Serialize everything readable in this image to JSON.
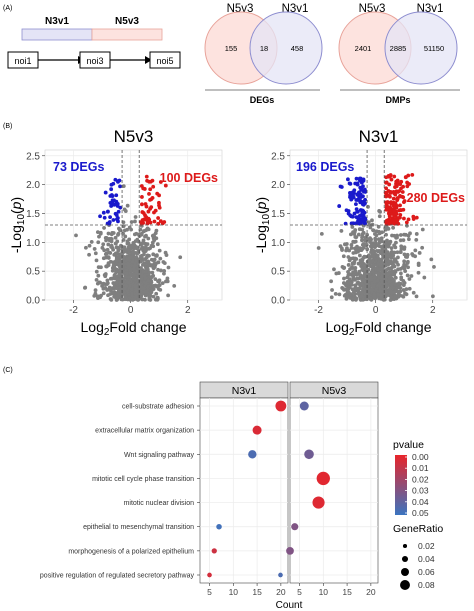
{
  "panels": {
    "a_label": "(A)",
    "b_label": "(B)",
    "c_label": "(C)"
  },
  "schematic": {
    "n3v1": "N3v1",
    "n5v3": "N5v3",
    "noi1": "noi1",
    "noi3": "noi3",
    "noi5": "noi5"
  },
  "venn_degs": {
    "left_label": "N5v3",
    "right_label": "N3v1",
    "left_only": "155",
    "overlap": "18",
    "right_only": "458",
    "caption": "DEGs"
  },
  "venn_dmps": {
    "left_label": "N5v3",
    "right_label": "N3v1",
    "left_only": "2401",
    "overlap": "2885",
    "right_only": "51150",
    "caption": "DMPs"
  },
  "colors": {
    "venn_left_fill": "#fde3df",
    "venn_left_stroke": "#e8a39a",
    "venn_right_fill": "#e4e4f6",
    "venn_right_stroke": "#8e8ed0",
    "venn_overlap_fill": "#f2c8e6",
    "down": "#1a1acc",
    "up": "#dd1a1a",
    "ns": "#7f7f7f",
    "grid": "#ebebeb",
    "strip": "#d9d9d9"
  },
  "chart_data": [
    {
      "type": "scatter",
      "title": "N5v3",
      "xlabel": "Log2Fold change",
      "ylabel": "-Log10(p)",
      "xlim": [
        -3,
        3.2
      ],
      "ylim": [
        0,
        2.6
      ],
      "xticks": [
        -2,
        0,
        2
      ],
      "yticks": [
        0.0,
        0.5,
        1.0,
        1.5,
        2.0,
        2.5
      ],
      "thresholds": {
        "x": [
          -0.3,
          0.3
        ],
        "y": 1.3
      },
      "annotations": [
        {
          "text": "73 DEGs",
          "color": "down"
        },
        {
          "text": "100 DEGs",
          "color": "up"
        }
      ]
    },
    {
      "type": "scatter",
      "title": "N3v1",
      "xlabel": "Log2Fold change",
      "ylabel": "-Log10(p)",
      "xlim": [
        -3,
        3.2
      ],
      "ylim": [
        0,
        2.6
      ],
      "xticks": [
        -2,
        0,
        2
      ],
      "yticks": [
        0.0,
        0.5,
        1.0,
        1.5,
        2.0,
        2.5
      ],
      "thresholds": {
        "x": [
          -0.3,
          0.3
        ],
        "y": 1.3
      },
      "annotations": [
        {
          "text": "196 DEGs",
          "color": "down"
        },
        {
          "text": "280 DEGs",
          "color": "up"
        }
      ]
    },
    {
      "type": "scatter",
      "subtype": "dotplot",
      "facets": [
        "N3v1",
        "N5v3"
      ],
      "xlabel": "Count",
      "xlim": [
        3,
        21.5
      ],
      "xticks": [
        5,
        10,
        15,
        20
      ],
      "categories": [
        "cell-substrate adhesion",
        "extracellular matrix organization",
        "Wnt signaling pathway",
        "mitotic cell cycle phase transition",
        "mitotic nuclear division",
        "epithelial to mesenchymal transition",
        "morphogenesis of a polarized epithelium",
        "positive regulation of regulated secretory pathway"
      ],
      "series": [
        {
          "name": "N3v1",
          "points": [
            {
              "term": "cell-substrate adhesion",
              "count": 20,
              "pvalue": 0.003,
              "generatio": 0.065
            },
            {
              "term": "extracellular matrix organization",
              "count": 15,
              "pvalue": 0.004,
              "generatio": 0.05
            },
            {
              "term": "Wnt signaling pathway",
              "count": 14,
              "pvalue": 0.045,
              "generatio": 0.045
            },
            {
              "term": "epithelial to mesenchymal transition",
              "count": 7,
              "pvalue": 0.048,
              "generatio": 0.022
            },
            {
              "term": "morphogenesis of a polarized epithelium",
              "count": 6,
              "pvalue": 0.008,
              "generatio": 0.02
            },
            {
              "term": "positive regulation of regulated secretory pathway",
              "count": 5,
              "pvalue": 0.006,
              "generatio": 0.015
            }
          ]
        },
        {
          "name": "N5v3",
          "points": [
            {
              "term": "cell-substrate adhesion",
              "count": 6,
              "pvalue": 0.04,
              "generatio": 0.05
            },
            {
              "term": "Wnt signaling pathway",
              "count": 7,
              "pvalue": 0.035,
              "generatio": 0.055
            },
            {
              "term": "mitotic cell cycle phase transition",
              "count": 10,
              "pvalue": 0.002,
              "generatio": 0.085
            },
            {
              "term": "mitotic nuclear division",
              "count": 9,
              "pvalue": 0.003,
              "generatio": 0.075
            },
            {
              "term": "epithelial to mesenchymal transition",
              "count": 4,
              "pvalue": 0.03,
              "generatio": 0.035
            },
            {
              "term": "morphogenesis of a polarized epithelium",
              "count": 3,
              "pvalue": 0.03,
              "generatio": 0.04
            },
            {
              "term": "positive regulation of regulated secretory pathway",
              "count": 1,
              "pvalue": 0.045,
              "generatio": 0.015
            }
          ]
        }
      ],
      "legend_pvalue": {
        "title": "pvalue",
        "ticks": [
          "0.00",
          "0.01",
          "0.02",
          "0.03",
          "0.04",
          "0.05"
        ],
        "high_color": "#e8242a",
        "low_color": "#3b74c0"
      },
      "legend_generatio": {
        "title": "GeneRatio",
        "ticks": [
          "0.02",
          "0.04",
          "0.06",
          "0.08"
        ]
      }
    }
  ]
}
